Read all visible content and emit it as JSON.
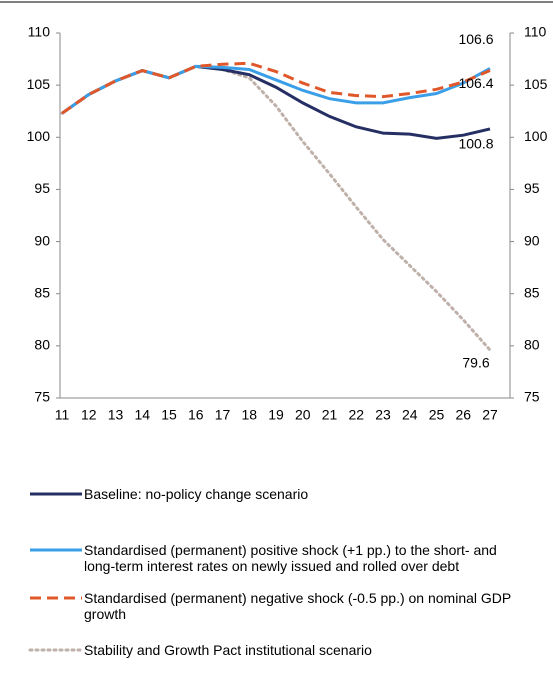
{
  "chart_data": {
    "type": "line",
    "categories": [
      "11",
      "12",
      "13",
      "14",
      "15",
      "16",
      "17",
      "18",
      "19",
      "20",
      "21",
      "22",
      "23",
      "24",
      "25",
      "26",
      "27"
    ],
    "ylim": [
      75,
      110
    ],
    "yticks": [
      75,
      80,
      85,
      90,
      95,
      100,
      105,
      110
    ],
    "series": [
      {
        "name": "Baseline: no-policy change scenario",
        "color": "#262f63",
        "line_style": "solid",
        "values": [
          102.3,
          104.1,
          105.4,
          106.4,
          105.7,
          106.8,
          106.5,
          106.0,
          104.8,
          103.3,
          102.0,
          101.0,
          100.4,
          100.3,
          99.9,
          100.2,
          100.8
        ]
      },
      {
        "name": "Standardised (permanent) positive shock (+1 pp.) to the short- and long-term interest rates on newly issued and rolled over debt",
        "color": "#3b9fe8",
        "line_style": "solid",
        "values": [
          102.3,
          104.1,
          105.4,
          106.4,
          105.7,
          106.8,
          106.7,
          106.5,
          105.5,
          104.5,
          103.7,
          103.3,
          103.3,
          103.8,
          104.2,
          105.2,
          106.6
        ]
      },
      {
        "name": "Standardised (permanent) negative shock (-0.5 pp.) on nominal GDP growth",
        "color": "#e0582a",
        "line_style": "dashed",
        "values": [
          102.3,
          104.1,
          105.4,
          106.4,
          105.7,
          106.8,
          107.0,
          107.1,
          106.3,
          105.2,
          104.3,
          104.0,
          103.9,
          104.2,
          104.6,
          105.3,
          106.4
        ]
      },
      {
        "name": "Stability and Growth Pact institutional scenario",
        "color": "#bfb1a9",
        "line_style": "dotted",
        "values": [
          102.3,
          104.1,
          105.4,
          106.4,
          105.7,
          106.8,
          106.5,
          105.7,
          103.0,
          99.6,
          96.5,
          93.3,
          90.2,
          87.7,
          85.2,
          82.5,
          79.6
        ]
      }
    ]
  }
}
